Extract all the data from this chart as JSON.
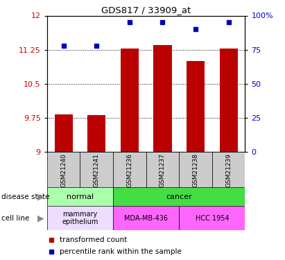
{
  "title": "GDS817 / 33909_at",
  "samples": [
    "GSM21240",
    "GSM21241",
    "GSM21236",
    "GSM21237",
    "GSM21238",
    "GSM21239"
  ],
  "bar_values": [
    9.83,
    9.82,
    11.28,
    11.35,
    11.0,
    11.27
  ],
  "percentile_values": [
    78,
    78,
    95,
    95,
    90,
    95
  ],
  "ylim_left": [
    9,
    12
  ],
  "ylim_right": [
    0,
    100
  ],
  "yticks_left": [
    9,
    9.75,
    10.5,
    11.25,
    12
  ],
  "yticks_right": [
    0,
    25,
    50,
    75,
    100
  ],
  "ytick_labels_left": [
    "9",
    "9.75",
    "10.5",
    "11.25",
    "12"
  ],
  "ytick_labels_right": [
    "0",
    "25",
    "50",
    "75",
    "100%"
  ],
  "bar_color": "#bb0000",
  "dot_color": "#0000bb",
  "bar_bottom": 9,
  "label_color_left": "#cc0000",
  "label_color_right": "#0000cc",
  "normal_color": "#aaffaa",
  "cancer_color": "#44dd44",
  "mammary_color": "#eeddff",
  "mda_color": "#ff66ff",
  "hcc_color": "#ff66ff",
  "sample_bg_color": "#cccccc"
}
